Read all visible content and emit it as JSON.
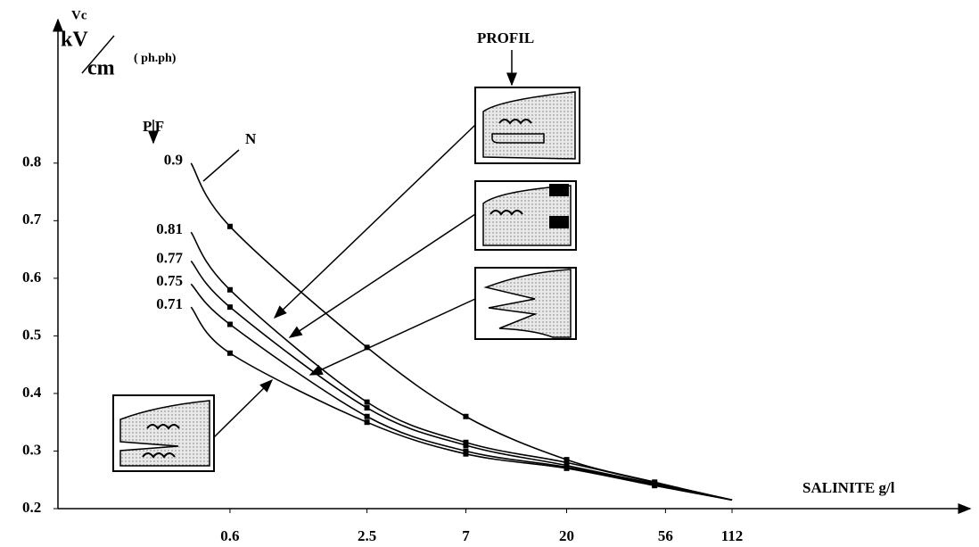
{
  "chart_data": {
    "type": "line",
    "y_label_top": "Vc",
    "y_label_unit_top": "kV",
    "y_label_unit_bottom": "cm",
    "y_label_note": "( ph.ph)",
    "x_label": "SALINITE g/l",
    "legend_title": "P F",
    "annotations": [
      "N",
      "PROFIL"
    ],
    "log_x": true,
    "x": [
      0.4,
      0.6,
      2.5,
      7,
      20,
      50,
      112
    ],
    "series": [
      {
        "name": "0.9",
        "color": "#000000",
        "values": [
          0.8,
          0.69,
          0.48,
          0.36,
          0.285,
          0.246,
          0.215
        ]
      },
      {
        "name": "0.81",
        "color": "#000000",
        "values": [
          0.68,
          0.58,
          0.385,
          0.315,
          0.28,
          0.245,
          0.215
        ]
      },
      {
        "name": "0.77",
        "color": "#000000",
        "values": [
          0.63,
          0.55,
          0.375,
          0.31,
          0.275,
          0.243,
          0.215
        ]
      },
      {
        "name": "0.75",
        "color": "#000000",
        "values": [
          0.59,
          0.52,
          0.36,
          0.3,
          0.272,
          0.242,
          0.215
        ]
      },
      {
        "name": "0.71",
        "color": "#000000",
        "values": [
          0.55,
          0.47,
          0.35,
          0.295,
          0.27,
          0.24,
          0.215
        ]
      }
    ],
    "xlim": [
      0.1,
      1300
    ],
    "xticks": [
      0.6,
      2.5,
      7,
      20,
      56,
      112
    ],
    "ylim": [
      0.2,
      1.06
    ],
    "yticks": [
      0.2,
      0.3,
      0.4,
      0.5,
      0.6,
      0.7,
      0.8
    ],
    "grid": false
  }
}
